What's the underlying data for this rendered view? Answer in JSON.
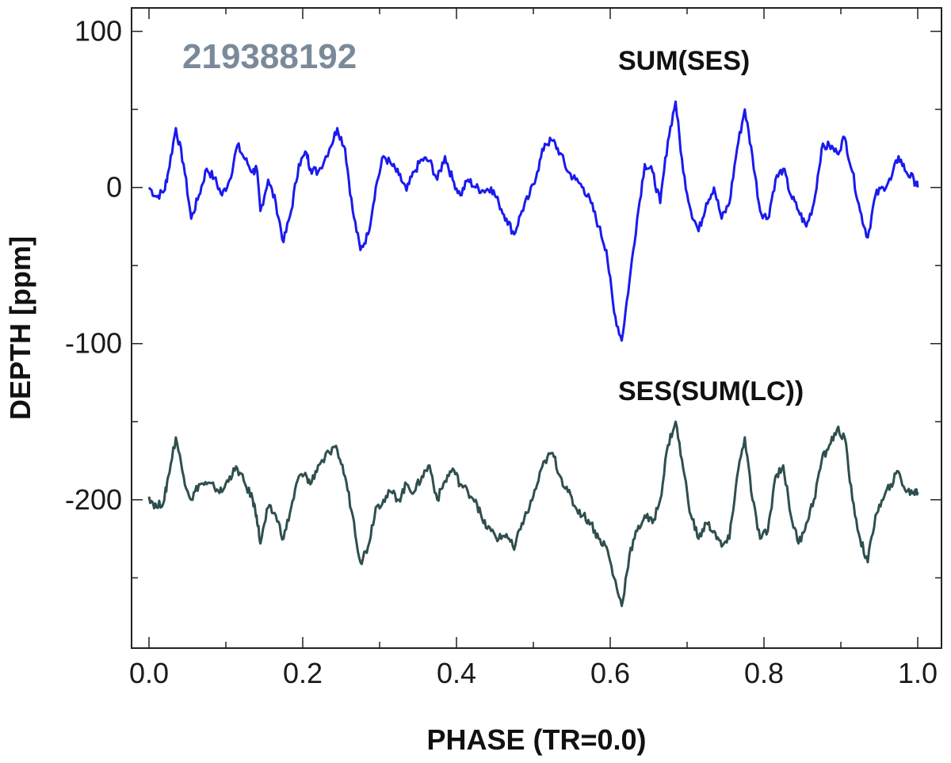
{
  "chart_data": {
    "type": "line",
    "title": "",
    "annotation_id": "219388192",
    "xlabel": "PHASE (TR=0.0)",
    "ylabel": "DEPTH [ppm]",
    "xlim": [
      0.0,
      1.0
    ],
    "ylim": [
      -295,
      115
    ],
    "x_ticks": [
      "0.0",
      "0.2",
      "0.4",
      "0.6",
      "0.8",
      "1.0"
    ],
    "y_ticks": [
      "100",
      "0",
      "-100",
      "-200"
    ],
    "grid": false,
    "series": [
      {
        "name": "SUM(SES)",
        "color": "#1a1aee",
        "points": [
          [
            0.0,
            0
          ],
          [
            0.01,
            -6
          ],
          [
            0.02,
            -2
          ],
          [
            0.025,
            10
          ],
          [
            0.035,
            38
          ],
          [
            0.045,
            15
          ],
          [
            0.055,
            -20
          ],
          [
            0.065,
            -5
          ],
          [
            0.075,
            12
          ],
          [
            0.085,
            6
          ],
          [
            0.095,
            -5
          ],
          [
            0.105,
            5
          ],
          [
            0.115,
            27
          ],
          [
            0.125,
            18
          ],
          [
            0.135,
            10
          ],
          [
            0.14,
            12
          ],
          [
            0.145,
            -15
          ],
          [
            0.155,
            5
          ],
          [
            0.165,
            -10
          ],
          [
            0.175,
            -35
          ],
          [
            0.185,
            -15
          ],
          [
            0.195,
            15
          ],
          [
            0.205,
            22
          ],
          [
            0.21,
            12
          ],
          [
            0.22,
            10
          ],
          [
            0.235,
            25
          ],
          [
            0.245,
            38
          ],
          [
            0.255,
            25
          ],
          [
            0.265,
            -15
          ],
          [
            0.275,
            -40
          ],
          [
            0.285,
            -30
          ],
          [
            0.295,
            0
          ],
          [
            0.305,
            20
          ],
          [
            0.315,
            15
          ],
          [
            0.325,
            8
          ],
          [
            0.335,
            -2
          ],
          [
            0.345,
            10
          ],
          [
            0.355,
            18
          ],
          [
            0.365,
            17
          ],
          [
            0.375,
            5
          ],
          [
            0.385,
            20
          ],
          [
            0.395,
            5
          ],
          [
            0.405,
            -5
          ],
          [
            0.415,
            5
          ],
          [
            0.425,
            0
          ],
          [
            0.435,
            -2
          ],
          [
            0.445,
            0
          ],
          [
            0.455,
            -10
          ],
          [
            0.465,
            -20
          ],
          [
            0.475,
            -30
          ],
          [
            0.485,
            -15
          ],
          [
            0.495,
            -5
          ],
          [
            0.505,
            10
          ],
          [
            0.515,
            28
          ],
          [
            0.525,
            30
          ],
          [
            0.535,
            22
          ],
          [
            0.545,
            10
          ],
          [
            0.555,
            5
          ],
          [
            0.565,
            0
          ],
          [
            0.575,
            -10
          ],
          [
            0.585,
            -25
          ],
          [
            0.595,
            -40
          ],
          [
            0.605,
            -80
          ],
          [
            0.615,
            -98
          ],
          [
            0.625,
            -60
          ],
          [
            0.635,
            -20
          ],
          [
            0.645,
            15
          ],
          [
            0.655,
            10
          ],
          [
            0.665,
            -10
          ],
          [
            0.675,
            30
          ],
          [
            0.685,
            55
          ],
          [
            0.695,
            10
          ],
          [
            0.705,
            -15
          ],
          [
            0.715,
            -28
          ],
          [
            0.725,
            -10
          ],
          [
            0.735,
            0
          ],
          [
            0.745,
            -20
          ],
          [
            0.755,
            -10
          ],
          [
            0.765,
            25
          ],
          [
            0.775,
            50
          ],
          [
            0.785,
            20
          ],
          [
            0.795,
            -15
          ],
          [
            0.805,
            -20
          ],
          [
            0.815,
            5
          ],
          [
            0.825,
            12
          ],
          [
            0.835,
            -5
          ],
          [
            0.845,
            -15
          ],
          [
            0.855,
            -25
          ],
          [
            0.865,
            -10
          ],
          [
            0.875,
            25
          ],
          [
            0.885,
            27
          ],
          [
            0.895,
            22
          ],
          [
            0.905,
            32
          ],
          [
            0.915,
            10
          ],
          [
            0.925,
            -15
          ],
          [
            0.935,
            -32
          ],
          [
            0.945,
            -5
          ],
          [
            0.955,
            0
          ],
          [
            0.965,
            5
          ],
          [
            0.975,
            20
          ],
          [
            0.985,
            10
          ],
          [
            0.995,
            5
          ],
          [
            1.0,
            0
          ]
        ]
      },
      {
        "name": "SES(SUM(LC))",
        "color": "#2f4f4f",
        "points": [
          [
            0.0,
            -198
          ],
          [
            0.01,
            -205
          ],
          [
            0.02,
            -200
          ],
          [
            0.025,
            -185
          ],
          [
            0.035,
            -160
          ],
          [
            0.045,
            -185
          ],
          [
            0.055,
            -200
          ],
          [
            0.065,
            -190
          ],
          [
            0.075,
            -190
          ],
          [
            0.085,
            -192
          ],
          [
            0.095,
            -195
          ],
          [
            0.105,
            -185
          ],
          [
            0.115,
            -180
          ],
          [
            0.125,
            -190
          ],
          [
            0.135,
            -200
          ],
          [
            0.14,
            -210
          ],
          [
            0.145,
            -228
          ],
          [
            0.155,
            -205
          ],
          [
            0.165,
            -210
          ],
          [
            0.175,
            -225
          ],
          [
            0.185,
            -205
          ],
          [
            0.195,
            -185
          ],
          [
            0.205,
            -185
          ],
          [
            0.21,
            -190
          ],
          [
            0.22,
            -178
          ],
          [
            0.235,
            -170
          ],
          [
            0.245,
            -168
          ],
          [
            0.255,
            -185
          ],
          [
            0.265,
            -210
          ],
          [
            0.275,
            -240
          ],
          [
            0.285,
            -230
          ],
          [
            0.295,
            -205
          ],
          [
            0.305,
            -200
          ],
          [
            0.315,
            -195
          ],
          [
            0.325,
            -200
          ],
          [
            0.335,
            -190
          ],
          [
            0.345,
            -195
          ],
          [
            0.355,
            -185
          ],
          [
            0.365,
            -178
          ],
          [
            0.375,
            -200
          ],
          [
            0.385,
            -188
          ],
          [
            0.395,
            -180
          ],
          [
            0.405,
            -190
          ],
          [
            0.415,
            -195
          ],
          [
            0.425,
            -200
          ],
          [
            0.435,
            -215
          ],
          [
            0.445,
            -220
          ],
          [
            0.455,
            -225
          ],
          [
            0.465,
            -222
          ],
          [
            0.475,
            -232
          ],
          [
            0.485,
            -215
          ],
          [
            0.495,
            -205
          ],
          [
            0.505,
            -190
          ],
          [
            0.515,
            -175
          ],
          [
            0.525,
            -170
          ],
          [
            0.535,
            -185
          ],
          [
            0.545,
            -195
          ],
          [
            0.555,
            -205
          ],
          [
            0.565,
            -210
          ],
          [
            0.575,
            -215
          ],
          [
            0.585,
            -225
          ],
          [
            0.595,
            -230
          ],
          [
            0.605,
            -250
          ],
          [
            0.615,
            -268
          ],
          [
            0.625,
            -235
          ],
          [
            0.635,
            -220
          ],
          [
            0.645,
            -210
          ],
          [
            0.655,
            -215
          ],
          [
            0.665,
            -200
          ],
          [
            0.675,
            -165
          ],
          [
            0.685,
            -150
          ],
          [
            0.695,
            -180
          ],
          [
            0.705,
            -210
          ],
          [
            0.715,
            -225
          ],
          [
            0.725,
            -215
          ],
          [
            0.735,
            -220
          ],
          [
            0.745,
            -230
          ],
          [
            0.755,
            -225
          ],
          [
            0.765,
            -185
          ],
          [
            0.775,
            -160
          ],
          [
            0.785,
            -200
          ],
          [
            0.795,
            -225
          ],
          [
            0.805,
            -220
          ],
          [
            0.815,
            -185
          ],
          [
            0.825,
            -178
          ],
          [
            0.835,
            -210
          ],
          [
            0.845,
            -228
          ],
          [
            0.855,
            -215
          ],
          [
            0.865,
            -200
          ],
          [
            0.875,
            -175
          ],
          [
            0.885,
            -165
          ],
          [
            0.895,
            -155
          ],
          [
            0.905,
            -160
          ],
          [
            0.915,
            -200
          ],
          [
            0.925,
            -225
          ],
          [
            0.935,
            -240
          ],
          [
            0.945,
            -210
          ],
          [
            0.955,
            -200
          ],
          [
            0.965,
            -190
          ],
          [
            0.975,
            -182
          ],
          [
            0.985,
            -195
          ],
          [
            0.995,
            -195
          ],
          [
            1.0,
            -195
          ]
        ]
      }
    ]
  }
}
